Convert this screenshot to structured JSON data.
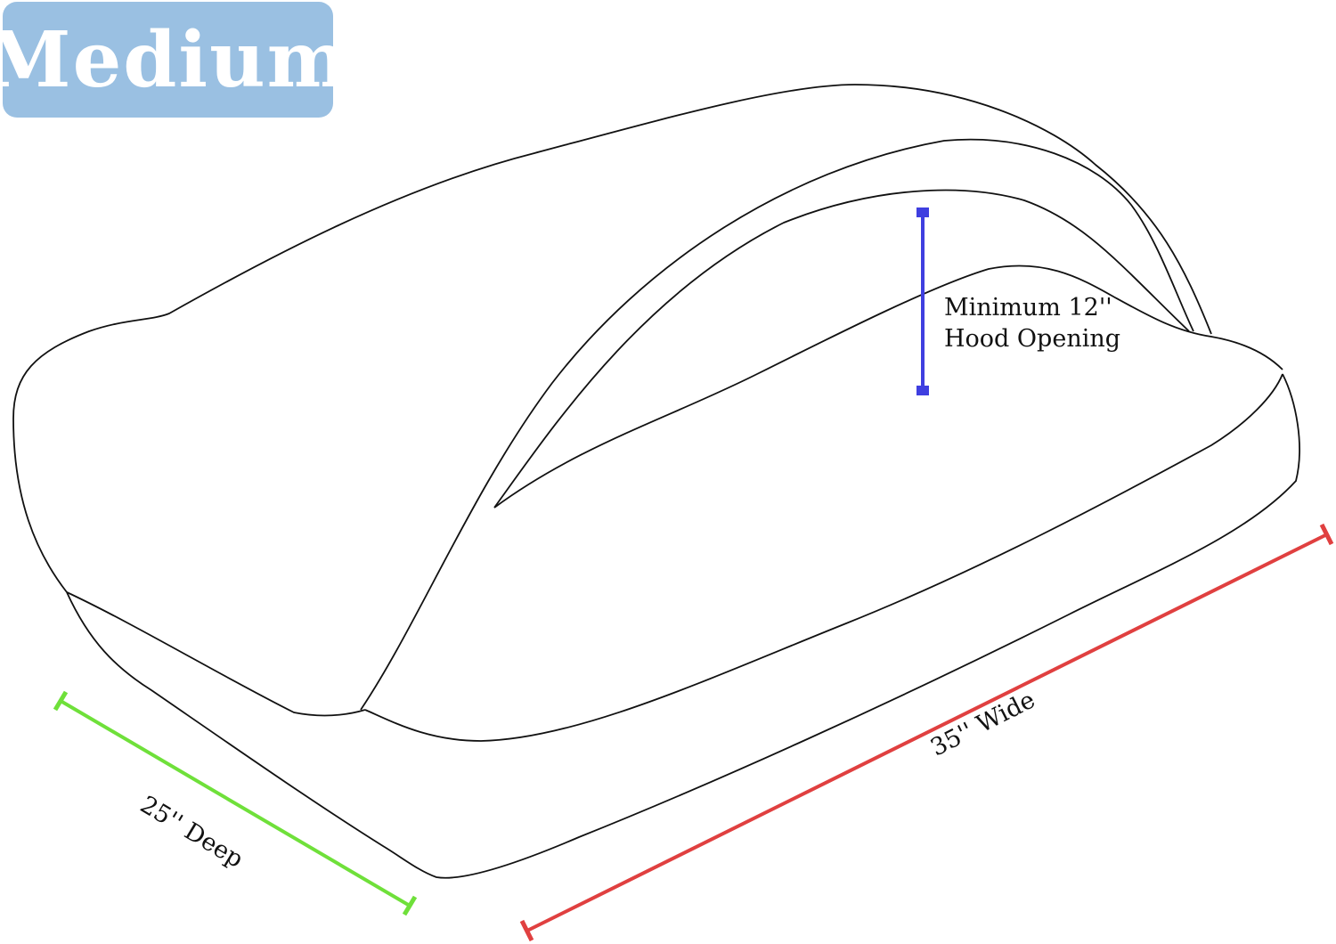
{
  "size_badge": {
    "label": "Medium",
    "color": "#9ac0e2"
  },
  "dimensions": {
    "hood": {
      "label_line1": "Minimum 12''",
      "label_line2": "Hood Opening",
      "color": "#3f3fe0"
    },
    "width": {
      "label": "35'' Wide",
      "color": "#e04040"
    },
    "depth": {
      "label": "25'' Deep",
      "color": "#6fe03a"
    }
  }
}
